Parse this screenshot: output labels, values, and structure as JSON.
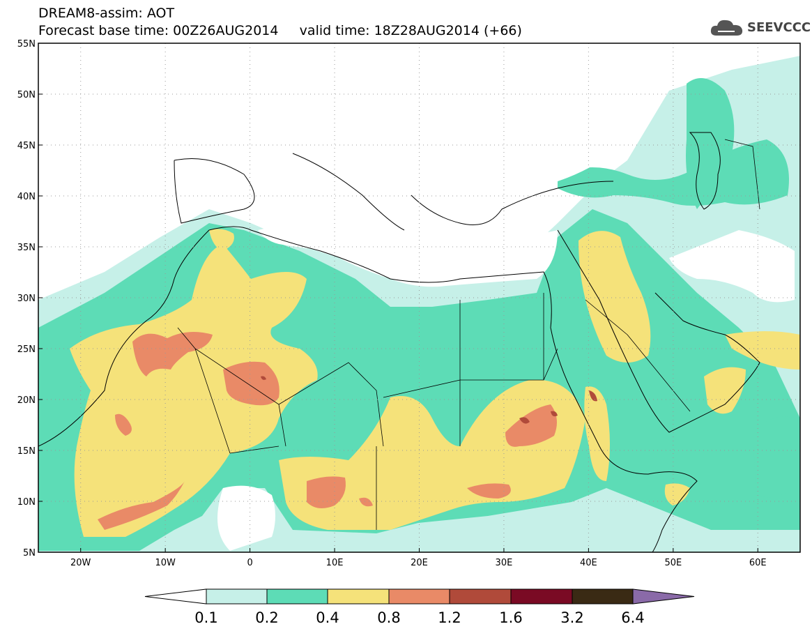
{
  "header": {
    "title_line1": "DREAM8-assim: AOT",
    "title_line2": "Forecast base time: 00Z26AUG2014     valid time: 18Z28AUG2014 (+66)"
  },
  "logo": {
    "text": "SEEVCCC",
    "icon": "cloud-icon"
  },
  "map": {
    "lon_range": [
      -25,
      65
    ],
    "lat_range": [
      5,
      55
    ],
    "lat_ticks": [
      {
        "value": 55,
        "label": "55N"
      },
      {
        "value": 50,
        "label": "50N"
      },
      {
        "value": 45,
        "label": "45N"
      },
      {
        "value": 40,
        "label": "40N"
      },
      {
        "value": 35,
        "label": "35N"
      },
      {
        "value": 30,
        "label": "30N"
      },
      {
        "value": 25,
        "label": "25N"
      },
      {
        "value": 20,
        "label": "20N"
      },
      {
        "value": 15,
        "label": "15N"
      },
      {
        "value": 10,
        "label": "10N"
      },
      {
        "value": 5,
        "label": "5N"
      }
    ],
    "lon_ticks": [
      {
        "value": -20,
        "label": "20W"
      },
      {
        "value": -10,
        "label": "10W"
      },
      {
        "value": 0,
        "label": "0"
      },
      {
        "value": 10,
        "label": "10E"
      },
      {
        "value": 20,
        "label": "20E"
      },
      {
        "value": 30,
        "label": "30E"
      },
      {
        "value": 40,
        "label": "40E"
      },
      {
        "value": 50,
        "label": "50E"
      },
      {
        "value": 60,
        "label": "60E"
      }
    ],
    "grid": "dotted"
  },
  "colorbar": {
    "levels": [
      "0.1",
      "0.2",
      "0.4",
      "0.8",
      "1.2",
      "1.6",
      "3.2",
      "6.4"
    ],
    "colors": [
      "#ffffff",
      "#c6f0e8",
      "#5ddcb6",
      "#f5e27a",
      "#e98a67",
      "#b04a3a",
      "#7a0a24",
      "#3a2a14",
      "#8a6aa8"
    ]
  }
}
